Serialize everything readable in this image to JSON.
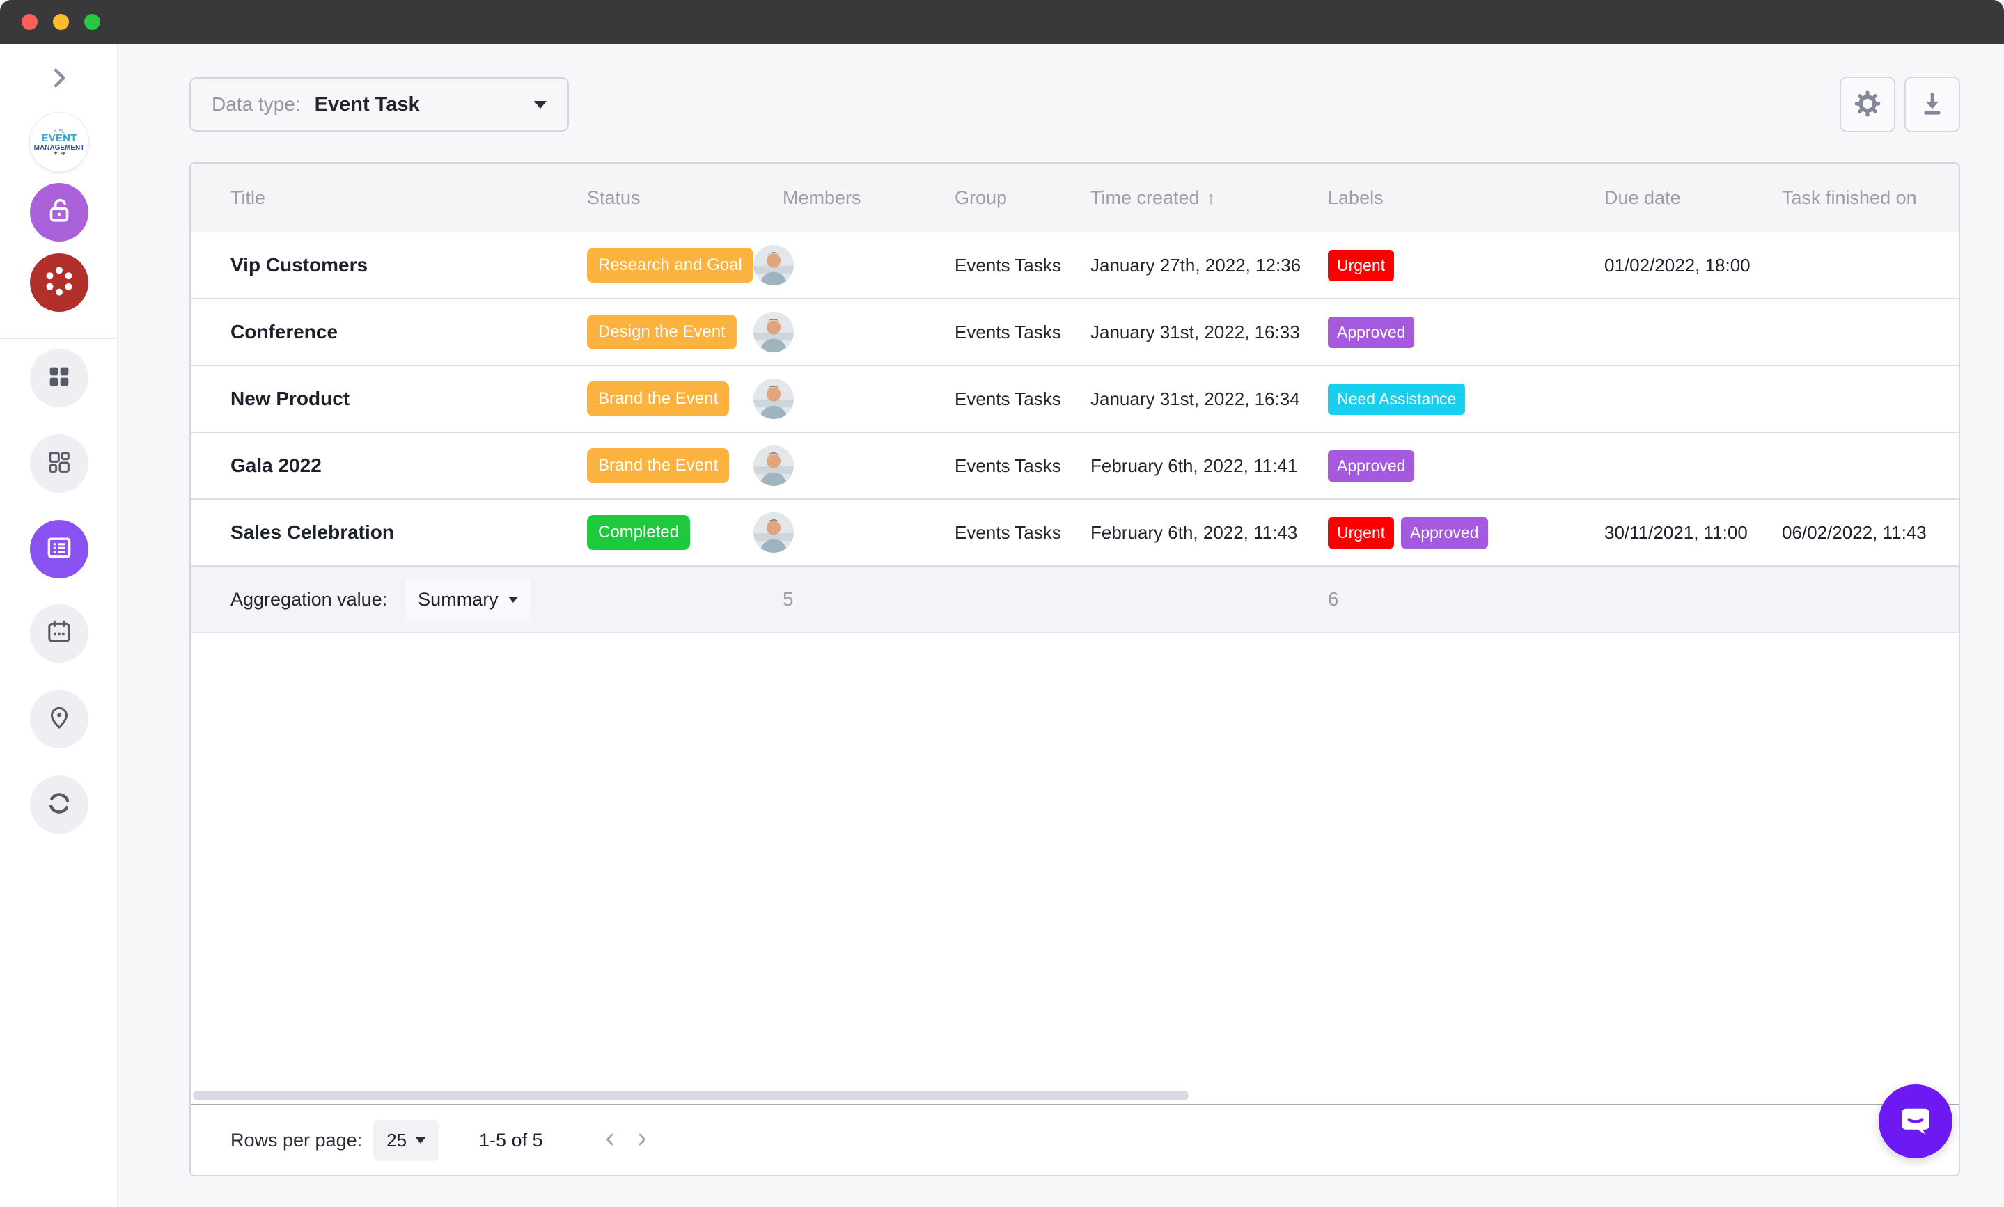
{
  "sidebar": {
    "logo_line1": "EVENT",
    "logo_line2": "MANAGEMENT",
    "items": [
      {
        "name": "expand-sidebar",
        "icon": "chevron-right-icon"
      },
      {
        "name": "workspace-logo",
        "icon": "event-management-logo"
      },
      {
        "name": "unlock",
        "icon": "unlock-icon"
      },
      {
        "name": "reel",
        "icon": "reel-dots-icon"
      },
      {
        "name": "apps",
        "icon": "grid-icon"
      },
      {
        "name": "dashboard",
        "icon": "dashboard-icon"
      },
      {
        "name": "table-view",
        "icon": "table-icon",
        "active": true
      },
      {
        "name": "calendar",
        "icon": "calendar-icon"
      },
      {
        "name": "location",
        "icon": "location-pin-icon"
      },
      {
        "name": "sync",
        "icon": "sync-icon"
      }
    ]
  },
  "toolbar": {
    "data_type_label": "Data type:",
    "data_type_value": "Event Task",
    "actions": [
      {
        "name": "settings",
        "icon": "gear-icon"
      },
      {
        "name": "export",
        "icon": "download-icon"
      }
    ]
  },
  "table": {
    "columns": [
      "Title",
      "Status",
      "Members",
      "Group",
      "Time created",
      "Labels",
      "Due date",
      "Task finished on"
    ],
    "sorted_column": "Time created",
    "sort_indicator": "↑",
    "rows": [
      {
        "title": "Vip Customers",
        "status": {
          "label": "Research and Goal",
          "color": "#fcb23e"
        },
        "members_count": 1,
        "group": "Events Tasks",
        "time_created": "January 27th, 2022, 12:36",
        "labels": [
          {
            "label": "Urgent",
            "color": "#fa0000"
          }
        ],
        "due_date": "01/02/2022, 18:00",
        "task_finished_on": ""
      },
      {
        "title": "Conference",
        "status": {
          "label": "Design the Event",
          "color": "#fcb23e"
        },
        "members_count": 1,
        "group": "Events Tasks",
        "time_created": "January 31st, 2022, 16:33",
        "labels": [
          {
            "label": "Approved",
            "color": "#a459de"
          }
        ],
        "due_date": "",
        "task_finished_on": ""
      },
      {
        "title": "New Product",
        "status": {
          "label": "Brand the Event",
          "color": "#fcb23e"
        },
        "members_count": 1,
        "group": "Events Tasks",
        "time_created": "January 31st, 2022, 16:34",
        "labels": [
          {
            "label": "Need Assistance",
            "color": "#18cfef"
          }
        ],
        "due_date": "",
        "task_finished_on": ""
      },
      {
        "title": "Gala 2022",
        "status": {
          "label": "Brand the Event",
          "color": "#fcb23e"
        },
        "members_count": 1,
        "group": "Events Tasks",
        "time_created": "February 6th, 2022, 11:41",
        "labels": [
          {
            "label": "Approved",
            "color": "#a459de"
          }
        ],
        "due_date": "",
        "task_finished_on": ""
      },
      {
        "title": "Sales Celebration",
        "status": {
          "label": "Completed",
          "color": "#1dc93d"
        },
        "members_count": 1,
        "group": "Events Tasks",
        "time_created": "February 6th, 2022, 11:43",
        "labels": [
          {
            "label": "Urgent",
            "color": "#fa0000"
          },
          {
            "label": "Approved",
            "color": "#a459de"
          }
        ],
        "due_date": "30/11/2021, 11:00",
        "task_finished_on": "06/02/2022, 11:43"
      }
    ]
  },
  "aggregation": {
    "label": "Aggregation value:",
    "value": "Summary",
    "members_summary": "5",
    "labels_summary": "6"
  },
  "footer": {
    "rows_per_page_label": "Rows per page:",
    "rows_per_page_value": "25",
    "range_text": "1-5 of 5"
  },
  "colors": {
    "accent_violet": "#8a52f2",
    "unlock_purple": "#ab61d9",
    "reel_red": "#b2302b",
    "chat_purple": "#6c19f2",
    "status_orange": "#fcb23e",
    "status_green": "#1dc93d",
    "label_red": "#fa0000",
    "label_purple": "#a459de",
    "label_cyan": "#18cfef"
  }
}
